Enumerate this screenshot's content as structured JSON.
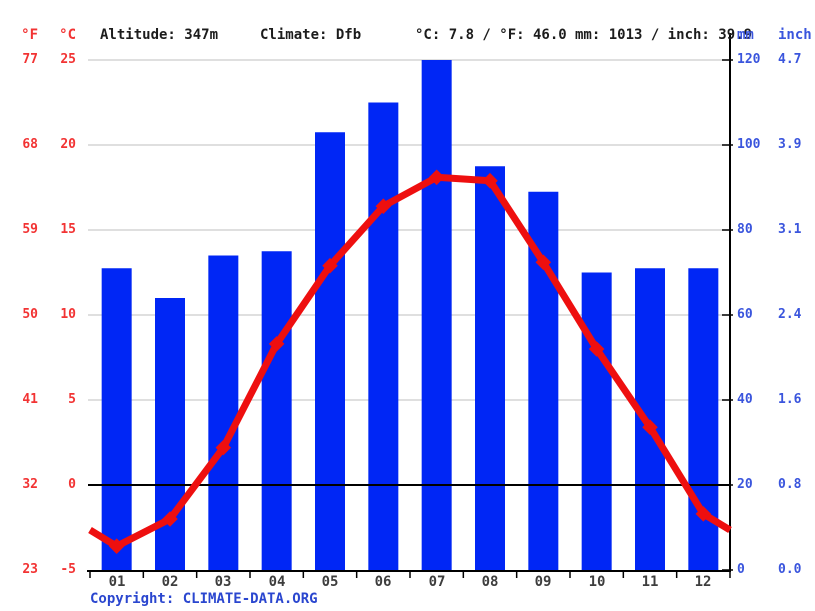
{
  "header": {
    "f_label": "°F",
    "c_label": "°C",
    "altitude": "Altitude: 347m",
    "climate": "Climate: Dfb",
    "avg_temp": "°C: 7.8 / °F: 46.0",
    "precip_total": "mm: 1013 / inch: 39.9",
    "mm_label": "mm",
    "inch_label": "inch"
  },
  "left_axis": {
    "f": [
      77,
      68,
      59,
      50,
      41,
      32,
      23
    ],
    "c": [
      25,
      20,
      15,
      10,
      5,
      0,
      -5
    ]
  },
  "right_axis": {
    "mm": [
      120,
      100,
      80,
      60,
      40,
      20,
      0
    ],
    "inch": [
      "4.7",
      "3.9",
      "3.1",
      "2.4",
      "1.6",
      "0.8",
      "0.0"
    ]
  },
  "footer": {
    "copyright": "Copyright: CLIMATE-DATA.ORG"
  },
  "chart_data": {
    "type": "bar",
    "subtype": "climograph: precipitation bars + temperature line",
    "categories": [
      "01",
      "02",
      "03",
      "04",
      "05",
      "06",
      "07",
      "08",
      "09",
      "10",
      "11",
      "12"
    ],
    "series": [
      {
        "name": "precipitation_mm",
        "type": "bar",
        "values": [
          71,
          64,
          74,
          75,
          103,
          110,
          120,
          95,
          89,
          70,
          71,
          71
        ]
      },
      {
        "name": "temperature_c",
        "type": "line",
        "values": [
          -3.6,
          -2.0,
          2.2,
          8.3,
          12.9,
          16.4,
          18.1,
          17.9,
          13.1,
          8.0,
          3.4,
          -1.7
        ]
      }
    ],
    "line_edge_temp_c": -2.65,
    "temp_axis_c_range": [
      -5,
      25
    ],
    "precip_axis_mm_range": [
      0,
      120
    ],
    "grid": true,
    "zero_line_c": 0,
    "legend_position": "none"
  },
  "colors": {
    "bar_blue": "#0026f5",
    "line_red": "#ee0f0f",
    "axis_label_red": "#f23333",
    "axis_label_blue": "#3a55dd",
    "grid_gray": "#cccccc",
    "axis_black": "#000000",
    "header_text": "#1c1c1c",
    "month_text": "#3d3d3d",
    "copyright_blue": "#2a46cf",
    "background": "#ffffff"
  }
}
